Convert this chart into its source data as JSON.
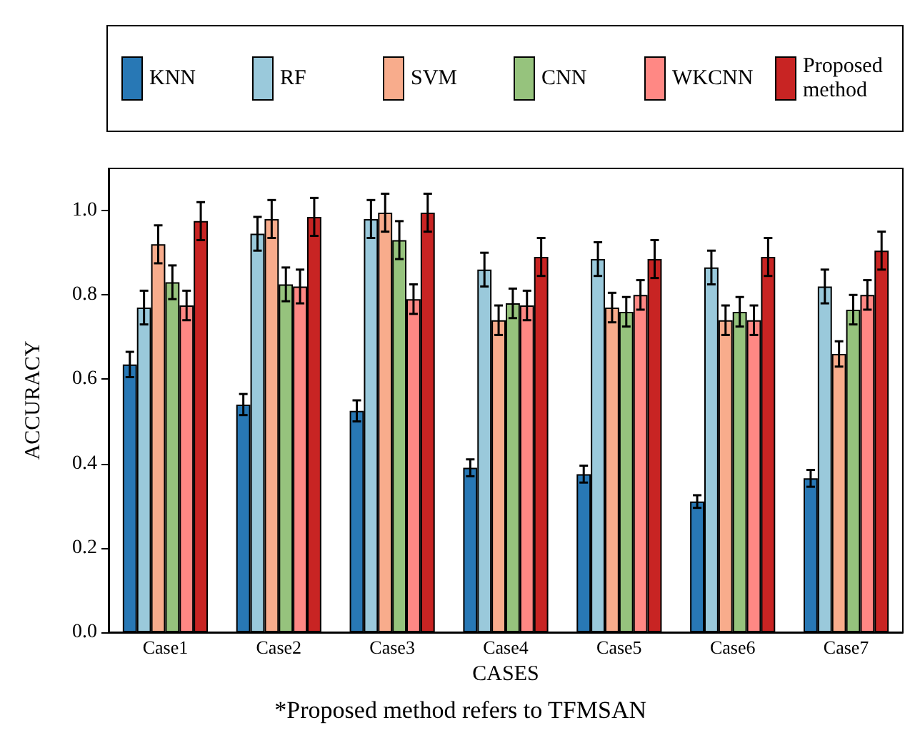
{
  "chart_data": {
    "type": "bar",
    "xlabel": "CASES",
    "ylabel": "ACCURACY",
    "annotations": [
      "*Proposed method refers to TFMSAN"
    ],
    "categories": [
      "Case1",
      "Case2",
      "Case3",
      "Case4",
      "Case5",
      "Case6",
      "Case7"
    ],
    "series": [
      {
        "name": "KNN",
        "color": "#2878b5",
        "values": [
          0.635,
          0.54,
          0.525,
          0.39,
          0.375,
          0.31,
          0.365
        ],
        "errors": [
          0.03,
          0.025,
          0.025,
          0.02,
          0.02,
          0.015,
          0.02
        ]
      },
      {
        "name": "RF",
        "color": "#9ac9db",
        "values": [
          0.77,
          0.945,
          0.98,
          0.86,
          0.885,
          0.865,
          0.82
        ],
        "errors": [
          0.04,
          0.04,
          0.045,
          0.04,
          0.04,
          0.04,
          0.04
        ]
      },
      {
        "name": "SVM",
        "color": "#f8ac8c",
        "values": [
          0.92,
          0.98,
          0.995,
          0.74,
          0.77,
          0.74,
          0.66
        ],
        "errors": [
          0.045,
          0.045,
          0.045,
          0.035,
          0.035,
          0.035,
          0.03
        ]
      },
      {
        "name": "CNN",
        "color": "#96c37d",
        "values": [
          0.83,
          0.825,
          0.93,
          0.78,
          0.76,
          0.76,
          0.765
        ],
        "errors": [
          0.04,
          0.04,
          0.045,
          0.035,
          0.035,
          0.035,
          0.035
        ]
      },
      {
        "name": "WKCNN",
        "color": "#ff8884",
        "values": [
          0.775,
          0.82,
          0.79,
          0.775,
          0.8,
          0.74,
          0.8
        ],
        "errors": [
          0.035,
          0.04,
          0.035,
          0.035,
          0.035,
          0.035,
          0.035
        ]
      },
      {
        "name": "Proposed method",
        "color": "#c82423",
        "values": [
          0.975,
          0.985,
          0.995,
          0.89,
          0.885,
          0.89,
          0.905
        ],
        "errors": [
          0.045,
          0.045,
          0.045,
          0.045,
          0.045,
          0.045,
          0.045
        ]
      }
    ],
    "ylim": [
      0,
      1.1
    ],
    "yticks": [
      {
        "value": 0,
        "label": "0.0"
      },
      {
        "value": 0.2,
        "label": "0.2"
      },
      {
        "value": 0.4,
        "label": "0.4"
      },
      {
        "value": 0.6,
        "label": "0.6"
      },
      {
        "value": 0.8,
        "label": "0.8"
      },
      {
        "value": 1,
        "label": "1.0"
      }
    ],
    "grid": false,
    "legend": "top"
  }
}
